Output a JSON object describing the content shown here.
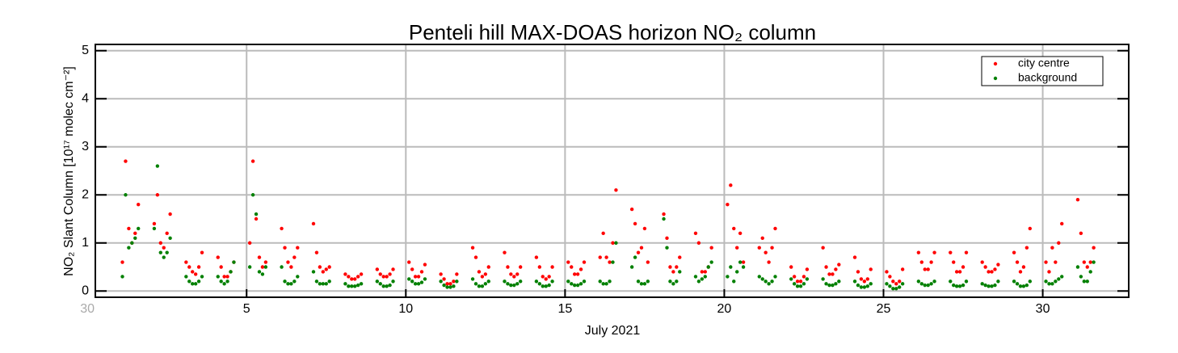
{
  "chart_data": {
    "type": "scatter",
    "title": "Penteli hill MAX-DOAS horizon NO₂ column",
    "x_label": "July 2021",
    "y_label": "NO₂ Slant Column [10¹⁷ molec cm⁻²]",
    "xlim": [
      0.25,
      32.7
    ],
    "ylim": [
      -0.13,
      5.13
    ],
    "xticks": [
      {
        "value": 0,
        "label": "30"
      },
      5,
      10,
      15,
      20,
      25,
      30
    ],
    "yticks": [
      0,
      1,
      2,
      3,
      4,
      5
    ],
    "grid": true,
    "legend": "upper right",
    "x": [
      1.1,
      1.2,
      1.3,
      1.4,
      1.5,
      1.6,
      2.1,
      2.2,
      2.3,
      2.4,
      2.5,
      2.6,
      3.1,
      3.2,
      3.3,
      3.4,
      3.5,
      3.6,
      4.1,
      4.2,
      4.3,
      4.4,
      4.5,
      4.6,
      5.1,
      5.2,
      5.3,
      5.4,
      5.5,
      5.6,
      6.1,
      6.2,
      6.3,
      6.4,
      6.5,
      6.6,
      7.1,
      7.2,
      7.3,
      7.4,
      7.5,
      7.6,
      8.1,
      8.2,
      8.3,
      8.4,
      8.5,
      8.6,
      9.1,
      9.2,
      9.3,
      9.4,
      9.5,
      9.6,
      10.1,
      10.2,
      10.3,
      10.4,
      10.5,
      10.6,
      11.1,
      11.2,
      11.3,
      11.4,
      11.5,
      11.6,
      12.1,
      12.2,
      12.3,
      12.4,
      12.5,
      12.6,
      13.1,
      13.2,
      13.3,
      13.4,
      13.5,
      13.6,
      14.1,
      14.2,
      14.3,
      14.4,
      14.5,
      14.6,
      15.1,
      15.2,
      15.3,
      15.4,
      15.5,
      15.6,
      16.1,
      16.2,
      16.3,
      16.4,
      16.5,
      16.6,
      17.1,
      17.2,
      17.3,
      17.4,
      17.5,
      17.6,
      18.1,
      18.2,
      18.3,
      18.4,
      18.5,
      18.6,
      19.1,
      19.2,
      19.3,
      19.4,
      19.5,
      19.6,
      20.1,
      20.2,
      20.3,
      20.4,
      20.5,
      20.6,
      21.1,
      21.2,
      21.3,
      21.4,
      21.5,
      21.6,
      22.1,
      22.2,
      22.3,
      22.4,
      22.5,
      22.6,
      23.1,
      23.2,
      23.3,
      23.4,
      23.5,
      23.6,
      24.1,
      24.2,
      24.3,
      24.4,
      24.5,
      24.6,
      25.1,
      25.2,
      25.3,
      25.4,
      25.5,
      25.6,
      26.1,
      26.2,
      26.3,
      26.4,
      26.5,
      26.6,
      27.1,
      27.2,
      27.3,
      27.4,
      27.5,
      27.6,
      28.1,
      28.2,
      28.3,
      28.4,
      28.5,
      28.6,
      29.1,
      29.2,
      29.3,
      29.4,
      29.5,
      29.6,
      30.1,
      30.2,
      30.3,
      30.4,
      30.5,
      30.6,
      31.1,
      31.2,
      31.3,
      31.4,
      31.5,
      31.6
    ],
    "series": [
      {
        "name": "city centre",
        "color": "#ff0000",
        "values": [
          0.6,
          2.7,
          1.3,
          1.0,
          1.2,
          1.8,
          1.4,
          2.0,
          1.0,
          0.9,
          1.2,
          1.6,
          0.6,
          0.5,
          0.4,
          0.35,
          0.5,
          0.8,
          0.7,
          0.5,
          0.3,
          0.3,
          0.4,
          0.6,
          1.0,
          2.7,
          1.5,
          0.7,
          0.5,
          0.6,
          1.3,
          0.9,
          0.6,
          0.5,
          0.7,
          0.9,
          1.4,
          0.8,
          0.5,
          0.4,
          0.45,
          0.5,
          0.35,
          0.3,
          0.25,
          0.25,
          0.3,
          0.35,
          0.45,
          0.35,
          0.3,
          0.3,
          0.35,
          0.45,
          0.6,
          0.45,
          0.3,
          0.3,
          0.4,
          0.55,
          0.35,
          0.25,
          0.15,
          0.15,
          0.2,
          0.35,
          0.9,
          0.7,
          0.4,
          0.3,
          0.35,
          0.5,
          0.8,
          0.5,
          0.35,
          0.3,
          0.35,
          0.5,
          0.7,
          0.5,
          0.3,
          0.25,
          0.3,
          0.5,
          0.6,
          0.5,
          0.35,
          0.35,
          0.45,
          0.6,
          0.7,
          1.2,
          0.7,
          0.6,
          1.0,
          2.1,
          1.7,
          1.4,
          0.8,
          0.9,
          1.3,
          0.6,
          1.6,
          1.1,
          0.5,
          0.4,
          0.5,
          0.7,
          1.2,
          1.0,
          0.4,
          0.4,
          0.5,
          0.9,
          1.8,
          2.2,
          1.3,
          0.9,
          1.2,
          0.6,
          0.9,
          1.1,
          0.8,
          0.6,
          0.9,
          1.3,
          0.5,
          0.3,
          0.2,
          0.2,
          0.3,
          0.45,
          0.9,
          0.5,
          0.35,
          0.35,
          0.45,
          0.55,
          0.7,
          0.4,
          0.25,
          0.2,
          0.25,
          0.45,
          0.4,
          0.3,
          0.2,
          0.15,
          0.2,
          0.45,
          0.8,
          0.6,
          0.45,
          0.45,
          0.6,
          0.8,
          0.8,
          0.6,
          0.4,
          0.4,
          0.5,
          0.8,
          0.6,
          0.5,
          0.4,
          0.4,
          0.45,
          0.55,
          0.8,
          0.6,
          0.4,
          0.5,
          0.9,
          1.3,
          0.6,
          0.4,
          0.9,
          0.6,
          1.0,
          1.4,
          1.9,
          1.2,
          0.6,
          0.5,
          0.6,
          0.9
        ]
      },
      {
        "name": "background",
        "color": "#008000",
        "values": [
          0.3,
          2.0,
          0.9,
          1.0,
          1.1,
          1.3,
          1.3,
          2.6,
          0.8,
          0.7,
          0.8,
          1.1,
          0.3,
          0.2,
          0.15,
          0.15,
          0.2,
          0.3,
          0.3,
          0.2,
          0.15,
          0.2,
          0.4,
          0.6,
          0.5,
          2.0,
          1.6,
          0.4,
          0.35,
          0.5,
          0.5,
          0.2,
          0.15,
          0.15,
          0.2,
          0.3,
          0.4,
          0.2,
          0.15,
          0.15,
          0.15,
          0.2,
          0.15,
          0.1,
          0.1,
          0.1,
          0.12,
          0.15,
          0.2,
          0.15,
          0.1,
          0.1,
          0.12,
          0.2,
          0.25,
          0.2,
          0.15,
          0.15,
          0.18,
          0.25,
          0.2,
          0.12,
          0.08,
          0.08,
          0.1,
          0.2,
          0.25,
          0.15,
          0.1,
          0.1,
          0.15,
          0.2,
          0.2,
          0.15,
          0.12,
          0.12,
          0.15,
          0.2,
          0.2,
          0.15,
          0.1,
          0.1,
          0.12,
          0.2,
          0.2,
          0.15,
          0.12,
          0.12,
          0.15,
          0.2,
          0.2,
          0.15,
          0.15,
          0.2,
          0.6,
          1.0,
          0.5,
          0.7,
          0.2,
          0.15,
          0.15,
          0.2,
          1.5,
          0.9,
          0.2,
          0.15,
          0.2,
          0.4,
          0.3,
          0.2,
          0.25,
          0.3,
          0.5,
          0.6,
          0.3,
          0.5,
          0.2,
          0.4,
          0.6,
          0.5,
          0.3,
          0.25,
          0.2,
          0.15,
          0.2,
          0.3,
          0.25,
          0.15,
          0.1,
          0.1,
          0.15,
          0.25,
          0.25,
          0.15,
          0.12,
          0.12,
          0.15,
          0.2,
          0.2,
          0.12,
          0.08,
          0.08,
          0.1,
          0.15,
          0.15,
          0.1,
          0.05,
          0.05,
          0.08,
          0.15,
          0.2,
          0.15,
          0.12,
          0.12,
          0.15,
          0.2,
          0.2,
          0.12,
          0.1,
          0.1,
          0.12,
          0.2,
          0.15,
          0.12,
          0.1,
          0.1,
          0.12,
          0.2,
          0.2,
          0.15,
          0.1,
          0.1,
          0.12,
          0.2,
          0.2,
          0.15,
          0.15,
          0.2,
          0.25,
          0.3,
          0.5,
          0.3,
          0.2,
          0.2,
          0.4,
          0.6
        ]
      }
    ]
  }
}
